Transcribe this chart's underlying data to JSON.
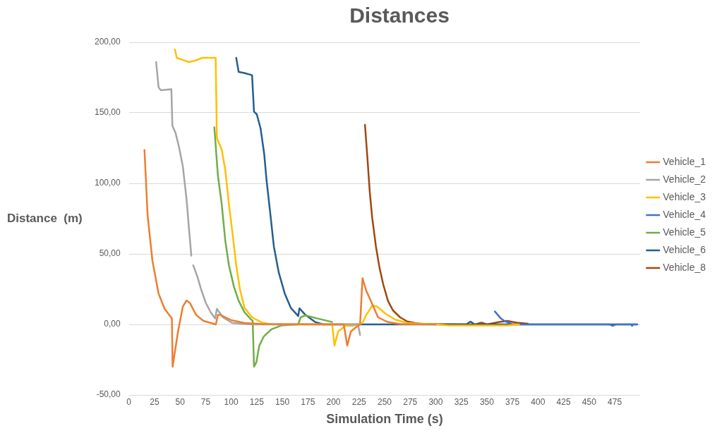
{
  "chart_data": {
    "type": "line",
    "title": "Distances",
    "xlabel": "Simulation Time (s)",
    "ylabel": "Distance  (m)",
    "xlim": [
      0,
      500
    ],
    "xticks": [
      0,
      25,
      50,
      75,
      100,
      125,
      150,
      175,
      200,
      225,
      250,
      275,
      300,
      325,
      350,
      375,
      400,
      425,
      450,
      475
    ],
    "ylim": [
      -50,
      200
    ],
    "yticks": [
      {
        "value": -50,
        "label": "-50,00"
      },
      {
        "value": 0,
        "label": "0,00"
      },
      {
        "value": 50,
        "label": "50,00"
      },
      {
        "value": 100,
        "label": "100,00"
      },
      {
        "value": 150,
        "label": "150,00"
      },
      {
        "value": 200,
        "label": "200,00"
      }
    ],
    "grid": "y",
    "legend": "right",
    "marker": "none",
    "line_style": "solid",
    "series": [
      {
        "name": "Vehicle_1",
        "color": "#ed7d31",
        "x": [
          15.2,
          18.3,
          23,
          29,
          34.9,
          42,
          42.7,
          48,
          52.7,
          56.3,
          59.8,
          65.7,
          72.9,
          85,
          87,
          89.5,
          100,
          113,
          130,
          200,
          210,
          213.5,
          217,
          222,
          226,
          228.4,
          232,
          236.5,
          243.6,
          253,
          265,
          300
        ],
        "values": [
          123.6,
          77,
          45,
          21.8,
          11,
          4.2,
          -30,
          -5,
          12.6,
          17,
          15,
          6.7,
          2.5,
          0,
          6.7,
          6.7,
          3,
          1,
          0.2,
          0,
          0,
          -15,
          -5,
          -2,
          0,
          32.7,
          24,
          16.7,
          5,
          1.7,
          0.3,
          0
        ]
      },
      {
        "name": "Vehicle_2",
        "color": "#a5a5a5",
        "x": [
          26.6,
          29,
          31.3,
          41.5,
          42.5,
          45.6,
          49,
          52.7,
          56.3,
          58.6,
          61,
          62,
          62.9,
          67,
          70.5,
          75.3,
          80,
          84.3,
          86,
          92,
          101,
          120,
          224,
          226
        ],
        "values": [
          186,
          168,
          166,
          166.7,
          140.7,
          135.7,
          125.6,
          112,
          89,
          68.8,
          48.7,
          null,
          41.9,
          33.7,
          25,
          15,
          8.5,
          4.2,
          11,
          5,
          1,
          0,
          0,
          -7.5
        ]
      },
      {
        "name": "Vehicle_3",
        "color": "#ffc000",
        "x": [
          44.9,
          46.8,
          58.6,
          63.4,
          71.7,
          83.5,
          84.8,
          86,
          90.7,
          94.3,
          97.8,
          101.4,
          104.9,
          108.5,
          113,
          120.4,
          130,
          140,
          197,
          198.7,
          201,
          204.6,
          211.8,
          219,
          228.4,
          232,
          238,
          242.7,
          251,
          260.5,
          272,
          300,
          313,
          370,
          381.5
        ],
        "values": [
          195,
          189,
          186,
          186.7,
          189,
          189,
          189,
          132,
          124,
          109,
          85,
          63.8,
          41.9,
          25,
          11.7,
          5,
          1.3,
          0,
          0,
          0,
          -15,
          -5,
          -1,
          -1,
          1,
          6.7,
          13.4,
          12.6,
          7.5,
          3.4,
          1,
          0,
          -0.8,
          -0.8,
          0
        ]
      },
      {
        "name": "Vehicle_4",
        "color": "#4472c4",
        "x": [
          357.8,
          363.7,
          367,
          375,
          470,
          473,
          476,
          491,
          492,
          493,
          497
        ],
        "values": [
          9.2,
          4.2,
          2.5,
          0,
          0,
          -1,
          0,
          0,
          -1,
          0,
          0
        ]
      },
      {
        "name": "Vehicle_5",
        "color": "#70ad47",
        "x": [
          83.5,
          87,
          90.7,
          94.3,
          97.8,
          102.6,
          107.3,
          113.2,
          119.2,
          121,
          122.3,
          124.6,
          127.5,
          132,
          139.4,
          148.9,
          165.5,
          167.9,
          172.6,
          184.5,
          198.7
        ],
        "values": [
          139.8,
          105.5,
          85.4,
          58.8,
          41.9,
          26.8,
          16.7,
          8.4,
          3.7,
          2.5,
          -30,
          -26.8,
          -15,
          -8.4,
          -3.4,
          -0.8,
          0,
          5,
          6.4,
          4.2,
          1.7
        ]
      },
      {
        "name": "Vehicle_6",
        "color": "#255e91",
        "x": [
          104.9,
          107.3,
          112,
          120.4,
          122.3,
          125,
          128.7,
          132.3,
          134.6,
          138.2,
          141.7,
          146.5,
          152.4,
          158.3,
          165.5,
          166.7,
          172.6,
          182,
          190,
          330,
          334,
          338,
          497
        ],
        "values": [
          189,
          179,
          178.4,
          176.7,
          150.8,
          149,
          139,
          120.6,
          102,
          78.7,
          55.3,
          36.8,
          21.8,
          11.7,
          5.9,
          11.4,
          6.7,
          1.7,
          0,
          0,
          2,
          0,
          0
        ]
      },
      {
        "name": "Vehicle_8",
        "color": "#9e480e",
        "x": [
          230.8,
          233.1,
          235.5,
          237.9,
          241.5,
          245,
          248.6,
          253.3,
          258.1,
          265.2,
          272.3,
          280,
          286.5,
          338.8,
          344.7,
          350,
          362.5,
          369.7,
          379,
          390
        ],
        "values": [
          141.5,
          119,
          93.8,
          75.4,
          55.3,
          40.2,
          28.5,
          16.7,
          10,
          5,
          2,
          1,
          0.3,
          0,
          1.3,
          0,
          1.7,
          2.5,
          1.3,
          0.5
        ]
      }
    ]
  }
}
